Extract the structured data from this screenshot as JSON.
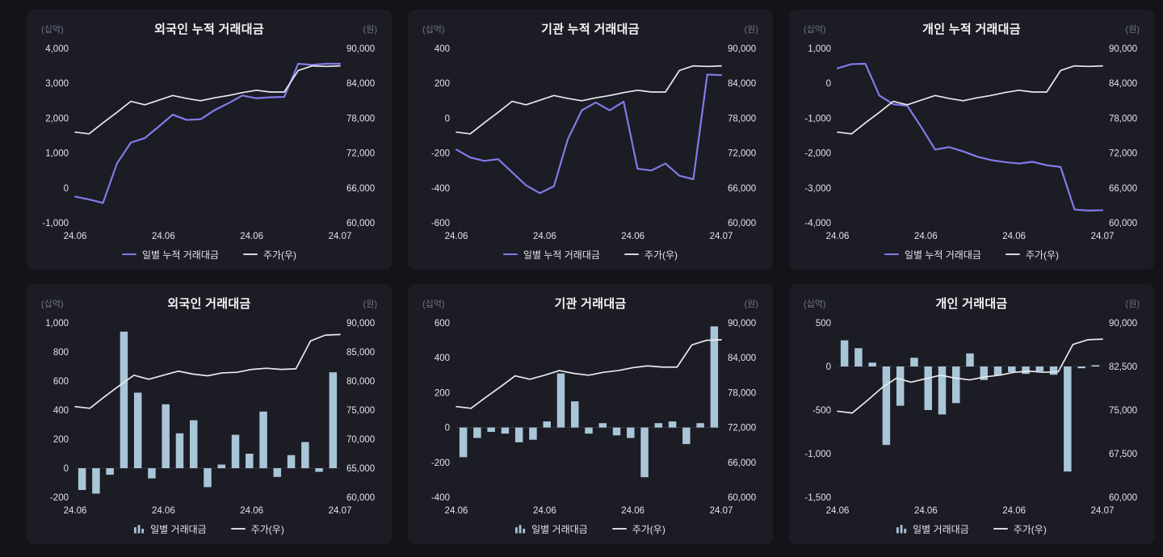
{
  "colors": {
    "background": "#131319",
    "panel": "#1b1c24",
    "value_line": "#837ae8",
    "price_line": "#e9e9ee",
    "bar": "#a9c5d8",
    "legend_price": "#d9d9de",
    "axis_text": "#e2e3e9",
    "unit_text": "#73748a"
  },
  "chart_data": [
    {
      "title": "외국인 누적 거래대금",
      "type": "line",
      "left_unit": "(십억)",
      "right_unit": "(원)",
      "left_axis": {
        "min": -1000,
        "max": 4000,
        "ticks": [
          4000,
          3000,
          2000,
          1000,
          0,
          -1000
        ]
      },
      "right_axis": {
        "min": 60000,
        "max": 90000,
        "ticks": [
          90000,
          84000,
          78000,
          72000,
          66000,
          60000
        ]
      },
      "x_labels": [
        "24.06",
        "24.06",
        "24.06",
        "24.07"
      ],
      "series": {
        "value": [
          -250,
          -330,
          -430,
          700,
          1300,
          1430,
          1760,
          2100,
          1950,
          1970,
          2230,
          2430,
          2650,
          2570,
          2600,
          2610,
          3560,
          3530,
          3560,
          3560
        ],
        "price": [
          75600,
          75300,
          77200,
          79000,
          80900,
          80300,
          81100,
          81900,
          81400,
          81000,
          81500,
          81900,
          82400,
          82800,
          82500,
          82500,
          86200,
          87000,
          86900,
          87000
        ]
      },
      "legend": [
        {
          "label": "일별 누적 거래대금",
          "marker": "line",
          "color": "#837ae8"
        },
        {
          "label": "주가(우)",
          "marker": "line",
          "color": "#d9d9de"
        }
      ]
    },
    {
      "title": "기관 누적 거래대금",
      "type": "line",
      "left_unit": "(십억)",
      "right_unit": "(원)",
      "left_axis": {
        "min": -600,
        "max": 400,
        "ticks": [
          400,
          200,
          0,
          -200,
          -400,
          -600
        ]
      },
      "right_axis": {
        "min": 60000,
        "max": 90000,
        "ticks": [
          90000,
          84000,
          78000,
          72000,
          66000,
          60000
        ]
      },
      "x_labels": [
        "24.06",
        "24.06",
        "24.06",
        "24.07"
      ],
      "series": {
        "value": [
          -180,
          -225,
          -245,
          -235,
          -310,
          -385,
          -430,
          -390,
          -120,
          45,
          90,
          45,
          95,
          -290,
          -300,
          -260,
          -330,
          -350,
          250,
          247
        ],
        "price": [
          75600,
          75300,
          77200,
          79000,
          80900,
          80300,
          81100,
          81900,
          81400,
          81000,
          81500,
          81900,
          82400,
          82800,
          82500,
          82500,
          86200,
          87000,
          86900,
          87000
        ]
      },
      "legend": [
        {
          "label": "일별 누적 거래대금",
          "marker": "line",
          "color": "#837ae8"
        },
        {
          "label": "주가(우)",
          "marker": "line",
          "color": "#d9d9de"
        }
      ]
    },
    {
      "title": "개인 누적 거래대금",
      "type": "line",
      "left_unit": "(십억)",
      "right_unit": "(원)",
      "left_axis": {
        "min": -4000,
        "max": 1000,
        "ticks": [
          1000,
          0,
          -1000,
          -2000,
          -3000,
          -4000
        ]
      },
      "right_axis": {
        "min": 60000,
        "max": 90000,
        "ticks": [
          90000,
          84000,
          78000,
          72000,
          66000,
          60000
        ]
      },
      "x_labels": [
        "24.06",
        "24.06",
        "24.06",
        "24.07"
      ],
      "series": {
        "value": [
          430,
          550,
          560,
          -350,
          -600,
          -640,
          -1250,
          -1900,
          -1830,
          -1950,
          -2100,
          -2200,
          -2260,
          -2300,
          -2250,
          -2350,
          -2400,
          -3620,
          -3650,
          -3640
        ],
        "price": [
          75600,
          75300,
          77200,
          79000,
          80900,
          80300,
          81100,
          81900,
          81400,
          81000,
          81500,
          81900,
          82400,
          82800,
          82500,
          82500,
          86200,
          87000,
          86900,
          87000
        ]
      },
      "legend": [
        {
          "label": "일별 누적 거래대금",
          "marker": "line",
          "color": "#837ae8"
        },
        {
          "label": "주가(우)",
          "marker": "line",
          "color": "#d9d9de"
        }
      ]
    },
    {
      "title": "외국인 거래대금",
      "type": "bar",
      "left_unit": "(십억)",
      "right_unit": "(원)",
      "left_axis": {
        "min": -200,
        "max": 1000,
        "ticks": [
          1000,
          800,
          600,
          400,
          200,
          0,
          -200
        ]
      },
      "right_axis": {
        "min": 60000,
        "max": 90000,
        "ticks": [
          90000,
          85000,
          80000,
          75000,
          70000,
          65000,
          60000
        ]
      },
      "x_labels": [
        "24.06",
        "24.06",
        "24.06",
        "24.07"
      ],
      "series": {
        "value": [
          -150,
          -175,
          -45,
          940,
          520,
          -70,
          440,
          240,
          330,
          -130,
          25,
          230,
          100,
          390,
          -60,
          90,
          180,
          -25,
          660
        ],
        "price": [
          75600,
          75300,
          77300,
          79200,
          81000,
          80300,
          81000,
          81700,
          81200,
          80900,
          81400,
          81500,
          82000,
          82200,
          82000,
          82100,
          86900,
          87900,
          88000
        ]
      },
      "legend": [
        {
          "label": "일별 거래대금",
          "marker": "bars",
          "color": "#a9c5d8"
        },
        {
          "label": "주가(우)",
          "marker": "line",
          "color": "#d9d9de"
        }
      ]
    },
    {
      "title": "기관 거래대금",
      "type": "bar",
      "left_unit": "(십억)",
      "right_unit": "(원)",
      "left_axis": {
        "min": -400,
        "max": 600,
        "ticks": [
          600,
          400,
          200,
          0,
          -200,
          -400
        ]
      },
      "right_axis": {
        "min": 60000,
        "max": 90000,
        "ticks": [
          90000,
          84000,
          78000,
          72000,
          66000,
          60000
        ]
      },
      "x_labels": [
        "24.06",
        "24.06",
        "24.06",
        "24.07"
      ],
      "series": {
        "value": [
          -170,
          -60,
          -25,
          -35,
          -85,
          -70,
          35,
          310,
          150,
          -35,
          25,
          -45,
          -60,
          -285,
          25,
          35,
          -95,
          25,
          580
        ],
        "price": [
          75600,
          75300,
          77200,
          79000,
          80900,
          80300,
          81000,
          81800,
          81300,
          81000,
          81500,
          81800,
          82300,
          82600,
          82400,
          82400,
          86200,
          87000,
          87100
        ]
      },
      "legend": [
        {
          "label": "일별 거래대금",
          "marker": "bars",
          "color": "#a9c5d8"
        },
        {
          "label": "주가(우)",
          "marker": "line",
          "color": "#d9d9de"
        }
      ]
    },
    {
      "title": "개인 거래대금",
      "type": "bar",
      "left_unit": "(십억)",
      "right_unit": "(원)",
      "left_axis": {
        "min": -1500,
        "max": 500,
        "ticks": [
          500,
          0,
          -500,
          -1000,
          -1500
        ]
      },
      "right_axis": {
        "min": 60000,
        "max": 90000,
        "ticks": [
          90000,
          82500,
          75000,
          67500,
          60000
        ]
      },
      "x_labels": [
        "24.06",
        "24.06",
        "24.06",
        "24.07"
      ],
      "series": {
        "value": [
          300,
          210,
          45,
          -900,
          -450,
          100,
          -500,
          -550,
          -420,
          150,
          -155,
          -105,
          -65,
          -85,
          -55,
          -95,
          -1205,
          -20,
          15
        ],
        "price": [
          74800,
          74500,
          76600,
          78800,
          80500,
          79800,
          80400,
          81000,
          80500,
          80200,
          80700,
          81000,
          81500,
          81700,
          81500,
          81600,
          86300,
          87100,
          87200
        ]
      },
      "legend": [
        {
          "label": "일별 거래대금",
          "marker": "bars",
          "color": "#a9c5d8"
        },
        {
          "label": "주가(우)",
          "marker": "line",
          "color": "#d9d9de"
        }
      ]
    }
  ]
}
